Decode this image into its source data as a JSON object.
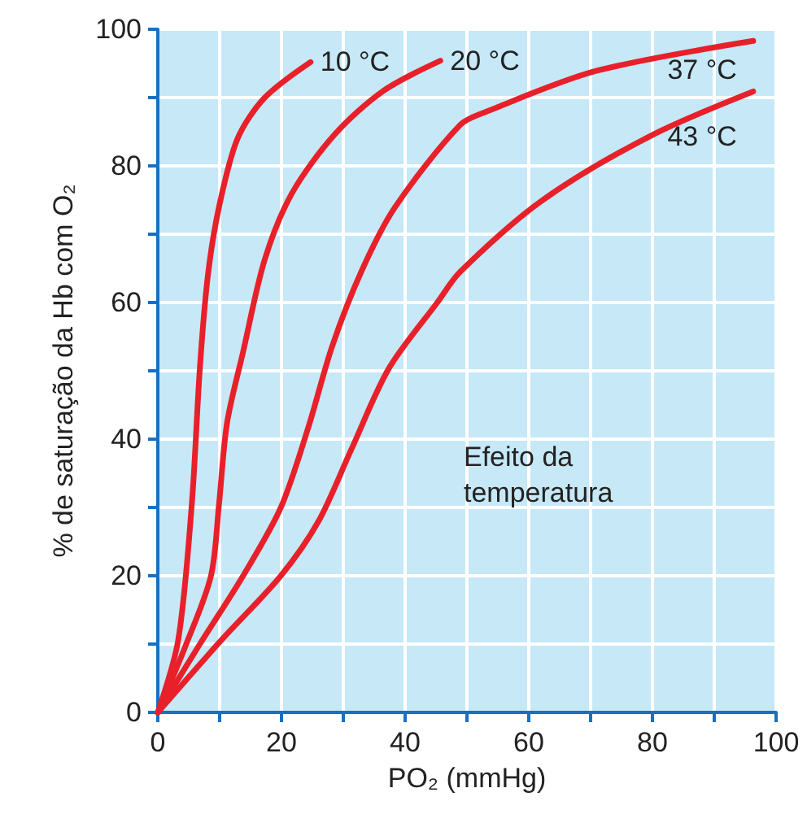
{
  "chart_data": {
    "type": "line",
    "xlabel": "PO₂ (mmHg)",
    "ylabel": "% de saturação da Hb com O₂",
    "annotations": [
      "Efeito da temperatura"
    ],
    "xlim": [
      0,
      100
    ],
    "ylim": [
      0,
      100
    ],
    "xticks": [
      0,
      {
        "value": 10,
        "label": null
      },
      20,
      {
        "value": 30,
        "label": null
      },
      40,
      {
        "value": 50,
        "label": null
      },
      60,
      {
        "value": 70,
        "label": null
      },
      80,
      {
        "value": 90,
        "label": null
      },
      100
    ],
    "yticks": [
      0,
      {
        "value": 10,
        "label": null
      },
      20,
      {
        "value": 30,
        "label": null
      },
      40,
      {
        "value": 50,
        "label": null
      },
      60,
      {
        "value": 70,
        "label": null
      },
      80,
      {
        "value": 90,
        "label": null
      },
      100
    ],
    "grid": true,
    "legend": false,
    "marker": "none",
    "line_style": "solid",
    "series": [
      {
        "name": "10 °C",
        "color": "#e8202a",
        "x": [
          0,
          3.3,
          5.5,
          6.8,
          8.1,
          9.9,
          12.9,
          17.3,
          24.7
        ],
        "values": [
          0,
          10.6,
          30.5,
          50.4,
          64,
          74,
          84,
          90,
          95.2
        ]
      },
      {
        "name": "20 °C",
        "color": "#e8202a",
        "x": [
          0,
          4.6,
          8.6,
          9.9,
          11.2,
          13.8,
          17.3,
          21.7,
          28.6,
          36.5,
          45.7
        ],
        "values": [
          0,
          10,
          20,
          30.5,
          42.4,
          52.8,
          66.3,
          76,
          84.6,
          91,
          95.4
        ]
      },
      {
        "name": "37 °C",
        "color": "#e8202a",
        "x": [
          0,
          6.8,
          13.8,
          19.9,
          24.3,
          28.2,
          33,
          38.4,
          48.9,
          53.3,
          70.9,
          96.3
        ],
        "values": [
          0,
          10,
          20,
          30,
          41.6,
          53.6,
          64.7,
          74,
          86,
          88,
          93.9,
          98.3
        ]
      },
      {
        "name": "43 °C",
        "color": "#e8202a",
        "x": [
          0,
          10.3,
          19.9,
          26,
          31.3,
          37.4,
          45.2,
          48.9,
          62.1,
          79.7,
          96.3
        ],
        "values": [
          0,
          10.6,
          20,
          28,
          38.5,
          50.4,
          60,
          64.5,
          74.9,
          84.4,
          90.9
        ]
      }
    ]
  }
}
